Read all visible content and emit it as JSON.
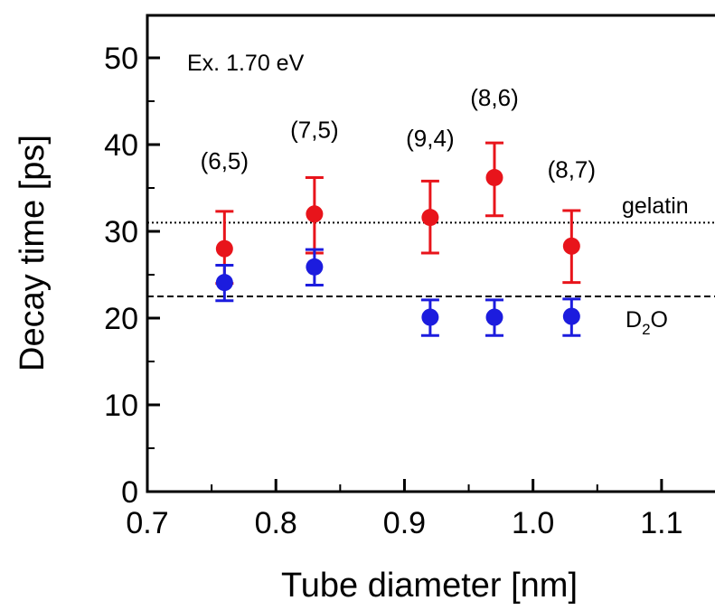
{
  "chart_data": {
    "type": "scatter",
    "xlabel": "Tube diameter [nm]",
    "ylabel": "Decay time [ps]",
    "xlim": [
      0.7,
      1.15
    ],
    "ylim": [
      0,
      55
    ],
    "x_ticks": [
      "0.7",
      "0.8",
      "0.9",
      "1.0",
      "1.1"
    ],
    "y_ticks": [
      "0",
      "10",
      "20",
      "30",
      "40",
      "50"
    ],
    "excitation_label": "Ex. 1.70 eV",
    "series": [
      {
        "color": "#e8141b",
        "points": [
          {
            "x": 0.76,
            "y": 28.0,
            "err_low": 24.0,
            "err_high": 32.3
          },
          {
            "x": 0.83,
            "y": 32.0,
            "err_low": 27.5,
            "err_high": 36.2
          },
          {
            "x": 0.92,
            "y": 31.6,
            "err_low": 27.5,
            "err_high": 35.8
          },
          {
            "x": 0.97,
            "y": 36.2,
            "err_low": 31.8,
            "err_high": 40.2
          },
          {
            "x": 1.03,
            "y": 28.3,
            "err_low": 24.1,
            "err_high": 32.4
          }
        ]
      },
      {
        "color": "#1c1cde",
        "points": [
          {
            "x": 0.76,
            "y": 24.1,
            "err_low": 22.0,
            "err_high": 26.1
          },
          {
            "x": 0.83,
            "y": 25.9,
            "err_low": 23.8,
            "err_high": 27.9
          },
          {
            "x": 0.92,
            "y": 20.1,
            "err_low": 18.0,
            "err_high": 22.1
          },
          {
            "x": 0.97,
            "y": 20.1,
            "err_low": 18.0,
            "err_high": 22.1
          },
          {
            "x": 1.03,
            "y": 20.2,
            "err_low": 18.0,
            "err_high": 22.2
          }
        ]
      }
    ],
    "chirality_labels": [
      {
        "text": "(6,5)",
        "x": 0.76,
        "y": 37.2
      },
      {
        "text": "(7,5)",
        "x": 0.83,
        "y": 40.8
      },
      {
        "text": "(9,4)",
        "x": 0.92,
        "y": 39.8
      },
      {
        "text": "(8,6)",
        "x": 0.97,
        "y": 44.5
      },
      {
        "text": "(8,7)",
        "x": 1.03,
        "y": 36.2
      }
    ],
    "reference_lines": [
      {
        "label": "gelatin",
        "y": 31.0,
        "style": "dotted"
      },
      {
        "label_main": "D",
        "label_sub": "2",
        "label_tail": "O",
        "y": 22.5,
        "style": "dashed"
      }
    ]
  }
}
